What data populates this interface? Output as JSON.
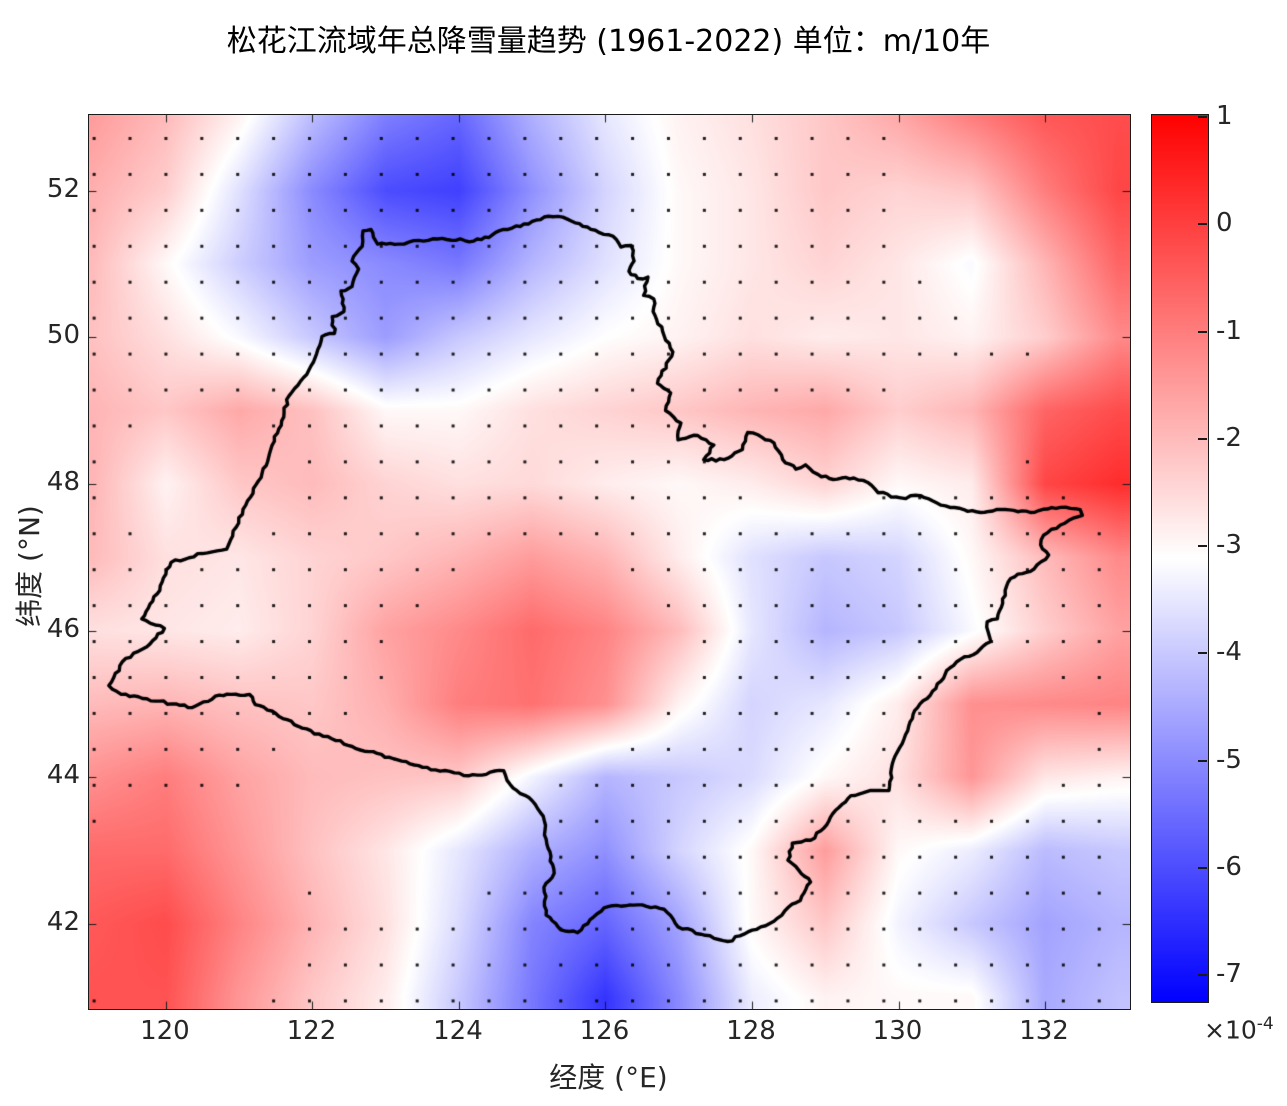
{
  "figure": {
    "title": "松花江流域年总降雪量趋势 (1961-2022) 单位：m/10年",
    "xlabel": "经度 (°E)",
    "ylabel": "纬度 (°N)",
    "colorbar_multiplier_base": "×10",
    "colorbar_multiplier_exp": "-4"
  },
  "chart_data": {
    "type": "heatmap",
    "title": "松花江流域年总降雪量趋势 (1961-2022) 单位：m/10年",
    "xlabel": "经度 (°E)",
    "ylabel": "纬度 (°N)",
    "units": "m/10年 (×10⁻⁴)",
    "x_range": [
      118.95,
      133.16
    ],
    "y_range": [
      40.84,
      53.03
    ],
    "xticks": [
      120,
      122,
      124,
      126,
      128,
      130,
      132
    ],
    "yticks": [
      42,
      44,
      46,
      48,
      50,
      52
    ],
    "grid_on": false,
    "colorbar": {
      "ticks": [
        1,
        0,
        -1,
        -2,
        -3,
        -4,
        -5,
        -6,
        -7
      ],
      "vmin": -7.24,
      "vmax": 1.03,
      "color_max": "#ff0000",
      "color_mid": "#ffffff",
      "color_min": "#0000ff",
      "position": "right"
    },
    "colors": {
      "boundary": "#000000",
      "stipple": "#000000",
      "axis": "#262626"
    },
    "trend_grid": {
      "comment": "trend values in 1e-4 m per decade; rows lat 53->41 step -1, cols lon 119->133 step 1",
      "lon_start": 119,
      "lon_step": 1,
      "lon_count": 15,
      "lat_start": 53,
      "lat_step": -1,
      "lat_count": 13,
      "values": [
        [
          -1.5,
          -2.0,
          -2.9,
          -4.2,
          -5.2,
          -5.6,
          -4.4,
          -3.5,
          -2.9,
          -2.6,
          -2.2,
          -1.7,
          -1.0,
          -0.4,
          -0.2
        ],
        [
          -1.8,
          -2.3,
          -3.6,
          -5.0,
          -6.0,
          -6.2,
          -4.9,
          -3.8,
          -3.0,
          -2.7,
          -2.2,
          -2.4,
          -2.2,
          -1.0,
          -0.1
        ],
        [
          -2.0,
          -3.0,
          -3.9,
          -4.7,
          -5.0,
          -5.3,
          -4.3,
          -3.6,
          -3.0,
          -2.7,
          -2.4,
          -2.7,
          -3.2,
          -1.9,
          -0.6
        ],
        [
          -2.1,
          -2.6,
          -3.2,
          -4.0,
          -4.7,
          -4.0,
          -3.5,
          -3.1,
          -2.9,
          -2.6,
          -2.8,
          -2.7,
          -2.9,
          -2.3,
          -1.2
        ],
        [
          -1.9,
          -2.2,
          -1.7,
          -2.1,
          -3.0,
          -3.0,
          -2.6,
          -2.4,
          -2.2,
          -1.9,
          -1.7,
          -2.3,
          -1.9,
          -0.6,
          -0.2
        ],
        [
          -1.9,
          -2.9,
          -2.2,
          -2.0,
          -2.4,
          -2.6,
          -2.5,
          -2.8,
          -3.0,
          -2.8,
          -2.4,
          -3.0,
          -2.8,
          -0.1,
          0.3
        ],
        [
          -2.0,
          -2.6,
          -2.7,
          -2.4,
          -2.2,
          -1.9,
          -1.5,
          -1.9,
          -2.8,
          -3.6,
          -4.0,
          -3.8,
          -3.0,
          -2.0,
          -1.2
        ],
        [
          -2.6,
          -2.7,
          -2.8,
          -2.4,
          -1.6,
          -1.2,
          -0.7,
          -1.1,
          -2.0,
          -3.5,
          -4.3,
          -4.0,
          -3.2,
          -2.3,
          -1.6
        ],
        [
          -2.0,
          -1.9,
          -2.1,
          -2.2,
          -1.8,
          -1.0,
          -0.8,
          -1.3,
          -2.9,
          -3.8,
          -3.5,
          -2.8,
          -1.3,
          -1.2,
          -1.1
        ],
        [
          -1.3,
          -1.0,
          -1.6,
          -2.0,
          -2.1,
          -2.2,
          -3.3,
          -4.3,
          -4.0,
          -3.7,
          -3.0,
          -2.6,
          -1.4,
          -2.7,
          -2.9
        ],
        [
          -0.7,
          -0.7,
          -1.4,
          -2.1,
          -2.7,
          -3.5,
          -4.4,
          -4.9,
          -3.8,
          -3.0,
          -1.5,
          -3.0,
          -3.4,
          -4.2,
          -4.0
        ],
        [
          -0.4,
          -0.2,
          -1.1,
          -1.9,
          -2.6,
          -3.7,
          -5.1,
          -5.6,
          -4.6,
          -3.0,
          -2.2,
          -3.3,
          -4.0,
          -4.6,
          -4.3
        ],
        [
          -0.3,
          -0.3,
          -1.4,
          -2.2,
          -2.8,
          -4.0,
          -5.3,
          -6.4,
          -5.0,
          -3.4,
          -2.9,
          -3.0,
          -3.0,
          -4.5,
          -4.1
        ]
      ]
    },
    "stipple": {
      "comment": "significance dots on ~0.49 deg grid; exclusion ellipses [lon_c, lat_c, rx, ry]",
      "lon_start": 119.02,
      "lat_start": 40.95,
      "step": 0.49,
      "cols": 29,
      "rows": 25,
      "dot_size_px": 3,
      "exclusions": [
        [
          125.15,
          45.55,
          1.95,
          1.4
        ],
        [
          123.3,
          43.6,
          2.05,
          1.3
        ],
        [
          120.3,
          42.2,
          1.65,
          1.6
        ],
        [
          120.45,
          47.95,
          1.15,
          0.95
        ],
        [
          132.15,
          51.9,
          2.1,
          1.85
        ],
        [
          132.95,
          48.9,
          1.1,
          1.3
        ],
        [
          128.9,
          48.4,
          1.3,
          0.75
        ],
        [
          130.95,
          48.9,
          0.95,
          0.85
        ],
        [
          131.45,
          44.6,
          1.2,
          0.9
        ]
      ]
    },
    "boundary": [
      [
        122.69,
        51.45
      ],
      [
        122.8,
        51.47
      ],
      [
        122.89,
        51.27
      ],
      [
        123.18,
        51.27
      ],
      [
        123.45,
        51.32
      ],
      [
        123.71,
        51.34
      ],
      [
        124.2,
        51.31
      ],
      [
        124.41,
        51.36
      ],
      [
        124.61,
        51.47
      ],
      [
        124.84,
        51.51
      ],
      [
        125.0,
        51.58
      ],
      [
        125.22,
        51.65
      ],
      [
        125.48,
        51.61
      ],
      [
        125.8,
        51.47
      ],
      [
        126.1,
        51.38
      ],
      [
        126.21,
        51.23
      ],
      [
        126.35,
        51.25
      ],
      [
        126.39,
        51.04
      ],
      [
        126.32,
        50.9
      ],
      [
        126.44,
        50.8
      ],
      [
        126.58,
        50.82
      ],
      [
        126.52,
        50.57
      ],
      [
        126.66,
        50.52
      ],
      [
        126.65,
        50.35
      ],
      [
        126.78,
        50.08
      ],
      [
        126.92,
        49.8
      ],
      [
        126.71,
        49.37
      ],
      [
        126.89,
        49.24
      ],
      [
        126.82,
        49.0
      ],
      [
        127.03,
        48.83
      ],
      [
        126.99,
        48.6
      ],
      [
        127.26,
        48.66
      ],
      [
        127.48,
        48.53
      ],
      [
        127.34,
        48.33
      ],
      [
        127.62,
        48.33
      ],
      [
        127.87,
        48.47
      ],
      [
        127.94,
        48.7
      ],
      [
        128.08,
        48.67
      ],
      [
        128.3,
        48.56
      ],
      [
        128.42,
        48.33
      ],
      [
        128.6,
        48.2
      ],
      [
        128.73,
        48.26
      ],
      [
        128.9,
        48.13
      ],
      [
        129.11,
        48.06
      ],
      [
        129.39,
        48.08
      ],
      [
        129.58,
        48.02
      ],
      [
        129.72,
        47.88
      ],
      [
        130.03,
        47.81
      ],
      [
        130.3,
        47.84
      ],
      [
        130.58,
        47.71
      ],
      [
        130.89,
        47.65
      ],
      [
        131.12,
        47.61
      ],
      [
        131.4,
        47.65
      ],
      [
        131.8,
        47.61
      ],
      [
        132.21,
        47.68
      ],
      [
        132.48,
        47.65
      ],
      [
        132.51,
        47.57
      ],
      [
        132.21,
        47.44
      ],
      [
        131.98,
        47.3
      ],
      [
        131.94,
        47.17
      ],
      [
        132.05,
        47.03
      ],
      [
        131.85,
        46.84
      ],
      [
        131.53,
        46.71
      ],
      [
        131.42,
        46.43
      ],
      [
        131.35,
        46.16
      ],
      [
        131.21,
        46.12
      ],
      [
        131.26,
        45.85
      ],
      [
        131.02,
        45.67
      ],
      [
        130.85,
        45.61
      ],
      [
        130.7,
        45.49
      ],
      [
        130.58,
        45.31
      ],
      [
        130.26,
        44.95
      ],
      [
        130.14,
        44.7
      ],
      [
        129.93,
        44.23
      ],
      [
        129.87,
        43.82
      ],
      [
        129.62,
        43.82
      ],
      [
        129.35,
        43.75
      ],
      [
        129.1,
        43.5
      ],
      [
        128.94,
        43.27
      ],
      [
        128.8,
        43.14
      ],
      [
        128.55,
        43.1
      ],
      [
        128.49,
        42.87
      ],
      [
        128.64,
        42.73
      ],
      [
        128.8,
        42.57
      ],
      [
        128.66,
        42.32
      ],
      [
        128.5,
        42.23
      ],
      [
        128.35,
        42.08
      ],
      [
        128.12,
        41.96
      ],
      [
        127.89,
        41.86
      ],
      [
        127.67,
        41.76
      ],
      [
        127.3,
        41.86
      ],
      [
        126.99,
        41.96
      ],
      [
        126.8,
        42.2
      ],
      [
        126.44,
        42.26
      ],
      [
        125.98,
        42.22
      ],
      [
        125.62,
        41.88
      ],
      [
        125.39,
        41.92
      ],
      [
        125.19,
        42.12
      ],
      [
        125.16,
        42.5
      ],
      [
        125.3,
        42.69
      ],
      [
        125.2,
        43.09
      ],
      [
        125.15,
        43.47
      ],
      [
        125.0,
        43.68
      ],
      [
        124.7,
        43.9
      ],
      [
        124.61,
        44.09
      ],
      [
        124.13,
        44.02
      ],
      [
        123.68,
        44.1
      ],
      [
        123.22,
        44.22
      ],
      [
        122.77,
        44.35
      ],
      [
        122.32,
        44.5
      ],
      [
        121.86,
        44.67
      ],
      [
        121.5,
        44.87
      ],
      [
        121.22,
        44.99
      ],
      [
        121.14,
        45.13
      ],
      [
        120.89,
        45.13
      ],
      [
        120.73,
        45.12
      ],
      [
        120.36,
        44.95
      ],
      [
        120.08,
        45.0
      ],
      [
        119.74,
        45.07
      ],
      [
        119.39,
        45.13
      ],
      [
        119.22,
        45.25
      ],
      [
        119.45,
        45.62
      ],
      [
        119.74,
        45.78
      ],
      [
        119.98,
        46.03
      ],
      [
        119.67,
        46.16
      ],
      [
        119.88,
        46.5
      ],
      [
        120.07,
        46.93
      ],
      [
        120.5,
        47.05
      ],
      [
        120.83,
        47.11
      ],
      [
        120.96,
        47.41
      ],
      [
        121.09,
        47.71
      ],
      [
        121.23,
        47.99
      ],
      [
        121.37,
        48.25
      ],
      [
        121.45,
        48.53
      ],
      [
        121.58,
        48.86
      ],
      [
        121.68,
        49.2
      ],
      [
        121.95,
        49.55
      ],
      [
        122.13,
        50.01
      ],
      [
        122.3,
        50.05
      ],
      [
        122.27,
        50.28
      ],
      [
        122.43,
        50.35
      ],
      [
        122.39,
        50.63
      ],
      [
        122.54,
        50.69
      ],
      [
        122.63,
        50.93
      ],
      [
        122.54,
        51.04
      ],
      [
        122.68,
        51.24
      ],
      [
        122.69,
        51.45
      ]
    ]
  }
}
